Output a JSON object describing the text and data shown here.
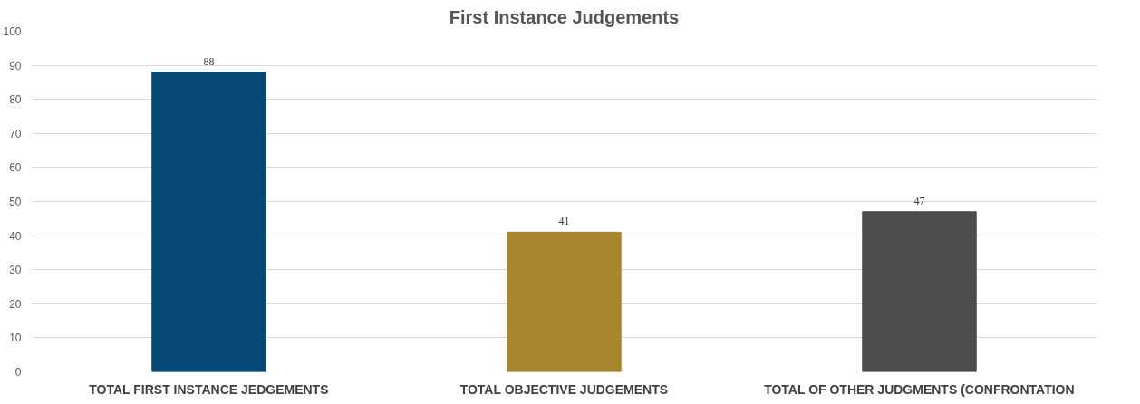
{
  "chart_data": {
    "type": "bar",
    "title": "First Instance Judgements",
    "categories": [
      "TOTAL FIRST INSTANCE JEDGEMENTS",
      "TOTAL OBJECTIVE JUDGEMENTS",
      "TOTAL OF OTHER JUDGMENTS (CONFRONTATION"
    ],
    "values": [
      88,
      41,
      47
    ],
    "colors": [
      "#074874",
      "#a88630",
      "#4d4d4d"
    ],
    "ylim": [
      0,
      100
    ],
    "yticks": [
      0,
      10,
      20,
      30,
      40,
      50,
      60,
      70,
      80,
      90,
      100
    ],
    "grid": "y",
    "data_labels": true
  }
}
